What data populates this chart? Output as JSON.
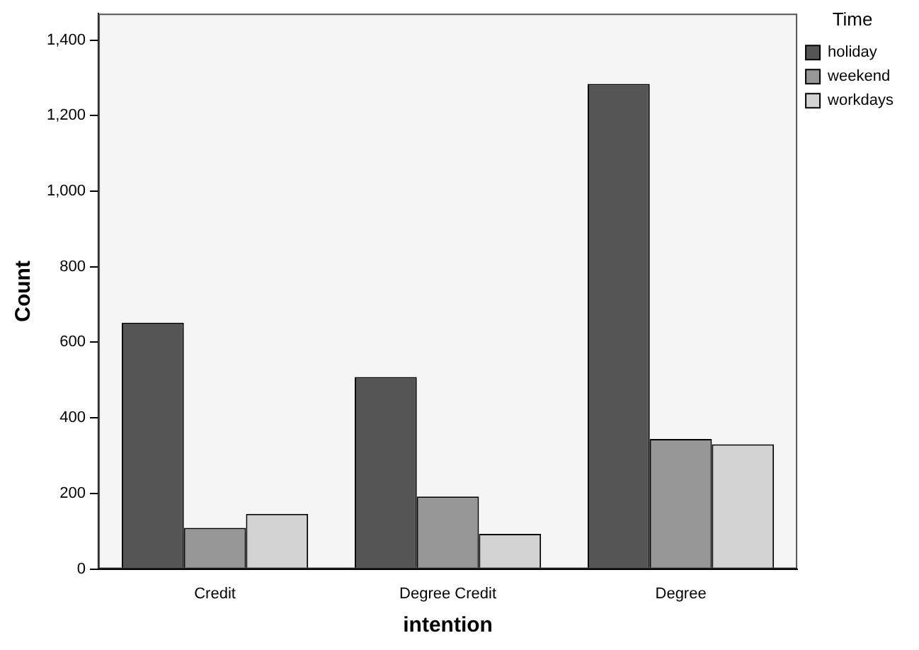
{
  "chart_data": {
    "type": "bar",
    "xlabel": "intention",
    "ylabel": "Count",
    "legend_title": "Time",
    "categories": [
      "Credit",
      "Degree Credit",
      "Degree"
    ],
    "series": [
      {
        "name": "holiday",
        "color": "#555555",
        "values": [
          652,
          508,
          1284
        ]
      },
      {
        "name": "weekend",
        "color": "#969696",
        "values": [
          109,
          192,
          344
        ]
      },
      {
        "name": "workdays",
        "color": "#d3d3d3",
        "values": [
          146,
          93,
          330
        ]
      }
    ],
    "ylim": [
      0,
      1470
    ],
    "yticks": [
      {
        "value": 0,
        "label": "0"
      },
      {
        "value": 200,
        "label": "200"
      },
      {
        "value": 400,
        "label": "400"
      },
      {
        "value": 600,
        "label": "600"
      },
      {
        "value": 800,
        "label": "800"
      },
      {
        "value": 1000,
        "label": "1,000"
      },
      {
        "value": 1200,
        "label": "1,200"
      },
      {
        "value": 1400,
        "label": "1,400"
      }
    ],
    "grid": false,
    "legend": "top right"
  }
}
